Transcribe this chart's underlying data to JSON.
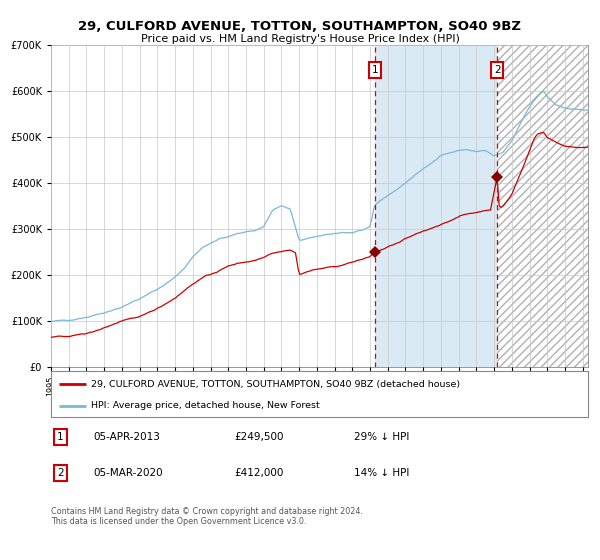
{
  "title": "29, CULFORD AVENUE, TOTTON, SOUTHAMPTON, SO40 9BZ",
  "subtitle": "Price paid vs. HM Land Registry's House Price Index (HPI)",
  "xlim_start": 1995.0,
  "xlim_end": 2025.3,
  "ylim": [
    0,
    700000
  ],
  "purchase1_date": 2013.27,
  "purchase1_price": 249500,
  "purchase1_label": "1",
  "purchase2_date": 2020.17,
  "purchase2_price": 412000,
  "purchase2_label": "2",
  "hpi_color": "#7ab8d8",
  "price_color": "#cc0000",
  "shading_color": "#daeaf5",
  "legend1_text": "29, CULFORD AVENUE, TOTTON, SOUTHAMPTON, SO40 9BZ (detached house)",
  "legend2_text": "HPI: Average price, detached house, New Forest",
  "note1_label": "1",
  "note1_date": "05-APR-2013",
  "note1_price": "£249,500",
  "note1_hpi": "29% ↓ HPI",
  "note2_label": "2",
  "note2_date": "05-MAR-2020",
  "note2_price": "£412,000",
  "note2_hpi": "14% ↓ HPI",
  "footer": "Contains HM Land Registry data © Crown copyright and database right 2024.\nThis data is licensed under the Open Government Licence v3.0.",
  "ytick_values": [
    0,
    100000,
    200000,
    300000,
    400000,
    500000,
    600000,
    700000
  ],
  "hpi_anchors": [
    [
      1995.0,
      98000
    ],
    [
      1996.0,
      102000
    ],
    [
      1997.0,
      108000
    ],
    [
      1998.0,
      118000
    ],
    [
      1999.0,
      130000
    ],
    [
      2000.0,
      148000
    ],
    [
      2001.0,
      168000
    ],
    [
      2002.0,
      195000
    ],
    [
      2002.5,
      213000
    ],
    [
      2003.0,
      240000
    ],
    [
      2003.5,
      258000
    ],
    [
      2004.0,
      268000
    ],
    [
      2004.5,
      278000
    ],
    [
      2005.0,
      282000
    ],
    [
      2005.5,
      290000
    ],
    [
      2006.0,
      294000
    ],
    [
      2006.5,
      296000
    ],
    [
      2007.0,
      305000
    ],
    [
      2007.5,
      340000
    ],
    [
      2008.0,
      350000
    ],
    [
      2008.5,
      342000
    ],
    [
      2009.0,
      275000
    ],
    [
      2009.5,
      278000
    ],
    [
      2010.0,
      283000
    ],
    [
      2010.5,
      288000
    ],
    [
      2011.0,
      290000
    ],
    [
      2011.5,
      292000
    ],
    [
      2012.0,
      290000
    ],
    [
      2012.5,
      295000
    ],
    [
      2013.0,
      305000
    ],
    [
      2013.25,
      350000
    ],
    [
      2013.5,
      360000
    ],
    [
      2014.0,
      372000
    ],
    [
      2014.5,
      385000
    ],
    [
      2015.0,
      400000
    ],
    [
      2015.5,
      415000
    ],
    [
      2016.0,
      430000
    ],
    [
      2016.5,
      445000
    ],
    [
      2017.0,
      460000
    ],
    [
      2017.5,
      465000
    ],
    [
      2018.0,
      470000
    ],
    [
      2018.5,
      472000
    ],
    [
      2019.0,
      468000
    ],
    [
      2019.5,
      470000
    ],
    [
      2020.0,
      458000
    ],
    [
      2020.5,
      465000
    ],
    [
      2021.0,
      490000
    ],
    [
      2021.5,
      530000
    ],
    [
      2022.0,
      565000
    ],
    [
      2022.5,
      590000
    ],
    [
      2022.8,
      600000
    ],
    [
      2023.0,
      588000
    ],
    [
      2023.5,
      570000
    ],
    [
      2024.0,
      562000
    ],
    [
      2024.5,
      560000
    ],
    [
      2025.0,
      558000
    ]
  ],
  "price_anchors": [
    [
      1995.0,
      63000
    ],
    [
      1996.0,
      67000
    ],
    [
      1997.0,
      72000
    ],
    [
      1997.5,
      78000
    ],
    [
      1998.0,
      85000
    ],
    [
      1998.5,
      92000
    ],
    [
      1999.0,
      98000
    ],
    [
      1999.5,
      104000
    ],
    [
      2000.0,
      110000
    ],
    [
      2000.5,
      118000
    ],
    [
      2001.0,
      128000
    ],
    [
      2001.5,
      138000
    ],
    [
      2002.0,
      150000
    ],
    [
      2002.5,
      165000
    ],
    [
      2003.0,
      180000
    ],
    [
      2003.5,
      193000
    ],
    [
      2004.0,
      200000
    ],
    [
      2004.5,
      210000
    ],
    [
      2005.0,
      218000
    ],
    [
      2005.5,
      225000
    ],
    [
      2006.0,
      228000
    ],
    [
      2006.5,
      232000
    ],
    [
      2007.0,
      238000
    ],
    [
      2007.5,
      248000
    ],
    [
      2008.0,
      252000
    ],
    [
      2008.5,
      255000
    ],
    [
      2008.8,
      248000
    ],
    [
      2009.0,
      200000
    ],
    [
      2009.3,
      205000
    ],
    [
      2009.5,
      208000
    ],
    [
      2010.0,
      212000
    ],
    [
      2010.5,
      215000
    ],
    [
      2011.0,
      218000
    ],
    [
      2011.5,
      222000
    ],
    [
      2012.0,
      228000
    ],
    [
      2012.5,
      232000
    ],
    [
      2013.0,
      240000
    ],
    [
      2013.27,
      249500
    ],
    [
      2013.5,
      252000
    ],
    [
      2014.0,
      260000
    ],
    [
      2014.5,
      268000
    ],
    [
      2015.0,
      278000
    ],
    [
      2015.5,
      286000
    ],
    [
      2016.0,
      294000
    ],
    [
      2016.5,
      302000
    ],
    [
      2017.0,
      310000
    ],
    [
      2017.5,
      318000
    ],
    [
      2018.0,
      326000
    ],
    [
      2018.5,
      332000
    ],
    [
      2019.0,
      336000
    ],
    [
      2019.5,
      340000
    ],
    [
      2019.8,
      342000
    ],
    [
      2020.17,
      412000
    ],
    [
      2020.3,
      345000
    ],
    [
      2020.5,
      348000
    ],
    [
      2021.0,
      375000
    ],
    [
      2021.5,
      420000
    ],
    [
      2022.0,
      470000
    ],
    [
      2022.3,
      500000
    ],
    [
      2022.5,
      508000
    ],
    [
      2022.8,
      510000
    ],
    [
      2023.0,
      498000
    ],
    [
      2023.3,
      492000
    ],
    [
      2023.5,
      488000
    ],
    [
      2024.0,
      480000
    ],
    [
      2024.5,
      478000
    ],
    [
      2025.0,
      476000
    ]
  ]
}
